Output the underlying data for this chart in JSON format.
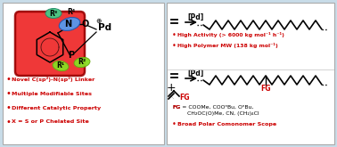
{
  "bg_color": "#c8dce8",
  "panel_color": "#ffffff",
  "red_color": "#cc0000",
  "black_color": "#000000",
  "red_rect_color": "#ee2222",
  "n_ellipse_color": "#4488ff",
  "green_ellipse_color": "#44cc88",
  "lime_ellipse_color": "#88dd22",
  "left_bullets": [
    "Novel C(sp²)-N(sp²) Linker",
    "Multiple Modifiable Sites",
    "Different Catalytic Property",
    "X = S or P Chelated Site"
  ],
  "top_right_bullets": [
    "High Activity (> 6000 kg mol⁻¹ h⁻¹)",
    "High Polymer MW (138 kg mol⁻¹)"
  ],
  "fg_line1": "FG = COOMe, COOⁿBu, OⁿBu,",
  "fg_line2": "CH₂OC(O)Me, CN, (CH₂)₄Cl",
  "broad_scope": "Broad Polar Comonomer Scope",
  "catalyst_label": "[Pd]",
  "fig_width": 3.78,
  "fig_height": 1.65,
  "dpi": 100
}
